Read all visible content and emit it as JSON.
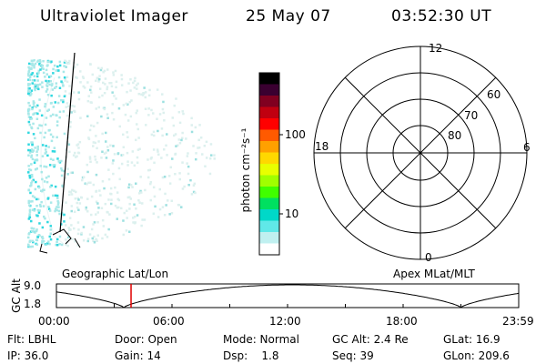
{
  "header": {
    "title": "Ultraviolet Imager",
    "date": "25 May 07",
    "time": "03:52:30 UT"
  },
  "colorbar": {
    "unit_label": "photon cm⁻²s⁻¹",
    "ticks": [
      "100",
      "10"
    ],
    "colors": [
      "#000000",
      "#3a0030",
      "#800020",
      "#c00010",
      "#ff0000",
      "#ff5a00",
      "#ffa000",
      "#ffd800",
      "#e8ff00",
      "#a0ff00",
      "#40ff00",
      "#00e060",
      "#00d8c8",
      "#60e8e8",
      "#c0f0f0",
      "#ffffff"
    ]
  },
  "polar_grid": {
    "mlt_labels": [
      "12",
      "18",
      "6",
      "0"
    ],
    "lat_labels": [
      "60",
      "70",
      "80"
    ]
  },
  "mag_map": {
    "left_label": "Geographic Lat/Lon",
    "right_label": "Apex MLat/MLT"
  },
  "altitude_plot": {
    "ylabel": "GC Alt",
    "ytick_top": "9.0",
    "ytick_bottom": "1.8",
    "xticks": [
      "00:00",
      "06:00",
      "12:00",
      "18:00",
      "23:59"
    ],
    "marker_time": "03:52:30"
  },
  "info": {
    "flt": "Flt: LBHL",
    "door": "Door: Open",
    "mode": "Mode: Normal",
    "gc_alt": "GC Alt: 2.4 Re",
    "glat": "GLat:  16.9",
    "ip": "IP: 36.0",
    "gain": "Gain: 14",
    "dsp": "Dsp:    1.8",
    "seq": "Seq: 39",
    "glon": "GLon: 209.6"
  }
}
